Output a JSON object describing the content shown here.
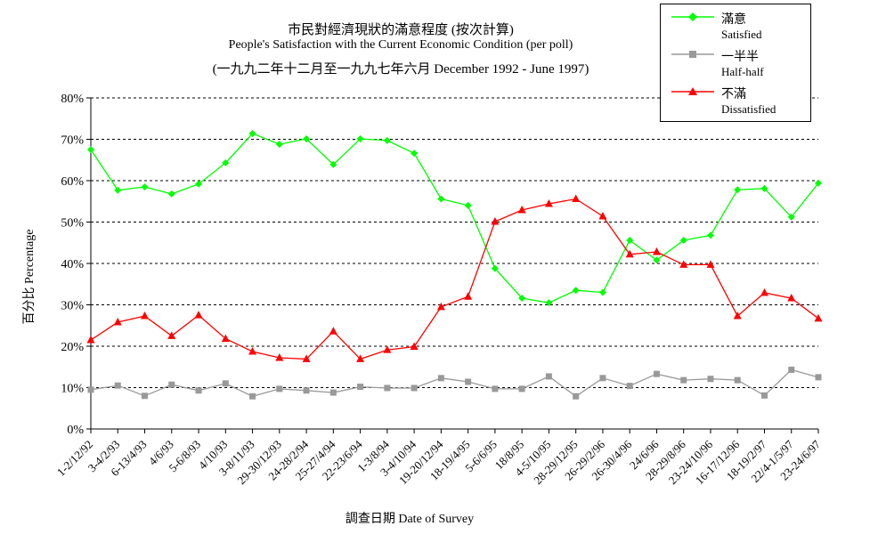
{
  "titles": {
    "line1": "市民對經濟現狀的滿意程度 (按次計算)",
    "line2": "People's Satisfaction with the Current Economic Condition  (per poll)",
    "line3": "(一九九二年十二月至一九九七年六月 December 1992 - June 1997)"
  },
  "axes": {
    "ylabel": "百分比 Percentage",
    "xlabel": "調查日期 Date of Survey"
  },
  "legend": [
    {
      "zh": "滿意",
      "en": "Satisfied",
      "color": "#00ff00",
      "marker": "diamond"
    },
    {
      "zh": "一半半",
      "en": "Half-half",
      "color": "#999999",
      "marker": "square"
    },
    {
      "zh": "不滿",
      "en": "Dissatisfied",
      "color": "#ff0000",
      "marker": "triangle"
    }
  ],
  "chart_data": {
    "type": "line",
    "title": "市民對經濟現狀的滿意程度 (按次計算)",
    "xlabel": "調查日期 Date of Survey",
    "ylabel": "百分比 Percentage",
    "ylim": [
      0,
      80
    ],
    "yticks": [
      "0%",
      "10%",
      "20%",
      "30%",
      "40%",
      "50%",
      "60%",
      "70%",
      "80%"
    ],
    "grid": "horizontal dashed",
    "legend_position": "top-right",
    "categories": [
      "1-2/12/92",
      "3-4/2/93",
      "6-13/4/93",
      "4/6/93",
      "5-6/8/93",
      "4/10/93",
      "3-8/11/93",
      "29-30/12/93",
      "24-28/2/94",
      "25-27/4/94",
      "22-23/6/94",
      "1-3/8/94",
      "3-4/10/94",
      "19-20/12/94",
      "18-19/4/95",
      "5-6/6/95",
      "18/8/95",
      "4-5/10/95",
      "28-29/12/95",
      "26-29/2/96",
      "26-30/4/96",
      "24/6/96",
      "28-29/8/96",
      "23-24/10/96",
      "16-17/12/96",
      "18-19/2/97",
      "22/4-1/5/97",
      "23-24/6/97"
    ],
    "series": [
      {
        "name": "滿意 Satisfied",
        "color": "#00ff00",
        "marker": "diamond",
        "values": [
          67.5,
          57.7,
          58.5,
          56.8,
          59.2,
          64.3,
          71.4,
          68.8,
          70.1,
          63.9,
          70.1,
          69.7,
          66.6,
          55.6,
          54.0,
          38.8,
          31.6,
          30.5,
          33.5,
          33.0,
          45.6,
          40.8,
          45.6,
          46.8,
          57.8,
          58.1,
          51.2,
          59.4
        ]
      },
      {
        "name": "一半半 Half-half",
        "color": "#999999",
        "marker": "square",
        "values": [
          9.5,
          10.5,
          8.0,
          10.7,
          9.3,
          11.0,
          7.9,
          9.7,
          9.3,
          8.8,
          10.2,
          9.9,
          9.9,
          12.3,
          11.4,
          9.7,
          9.7,
          12.7,
          7.9,
          12.3,
          10.4,
          13.3,
          11.8,
          12.1,
          11.8,
          8.1,
          14.3,
          12.5
        ]
      },
      {
        "name": "不滿 Dissatisfied",
        "color": "#ff0000",
        "marker": "triangle",
        "values": [
          21.5,
          25.8,
          27.3,
          22.5,
          27.5,
          21.8,
          18.7,
          17.2,
          16.9,
          23.6,
          16.9,
          19.1,
          19.9,
          29.5,
          32.0,
          50.1,
          52.9,
          54.4,
          55.6,
          51.4,
          42.2,
          42.8,
          39.7,
          39.7,
          27.3,
          32.9,
          31.6,
          26.7
        ]
      }
    ]
  }
}
